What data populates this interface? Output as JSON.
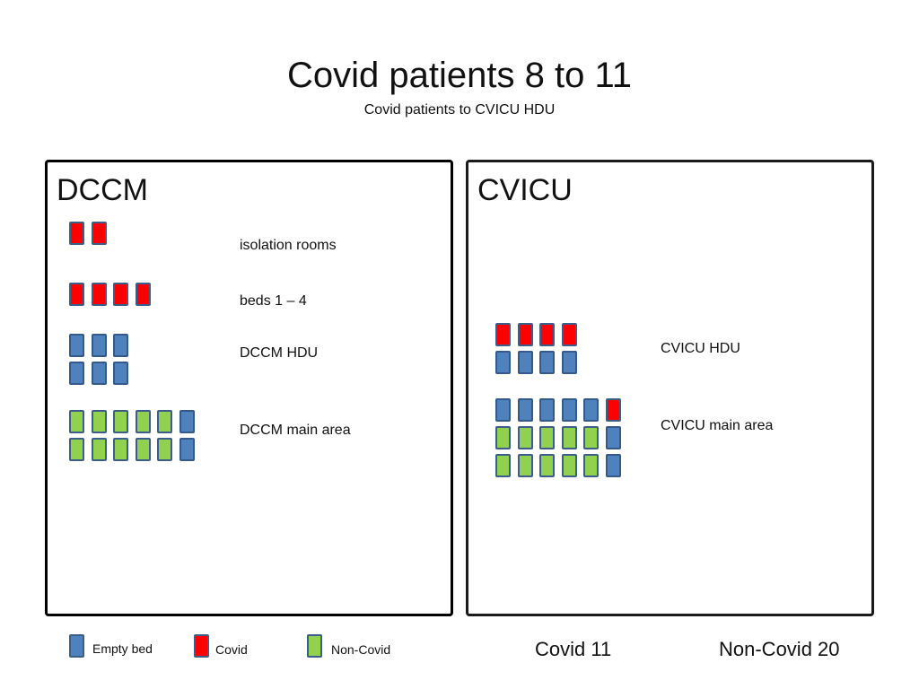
{
  "title": "Covid patients 8 to 11",
  "subtitle": "Covid patients to CVICU HDU",
  "colors": {
    "empty": "#4f81bd",
    "covid": "#ff0000",
    "noncovid": "#92d050"
  },
  "dccm": {
    "title": "DCCM",
    "areas": [
      {
        "label": "isolation rooms",
        "rows": [
          [
            "covid",
            "covid"
          ]
        ]
      },
      {
        "label": "beds 1 – 4",
        "rows": [
          [
            "covid",
            "covid",
            "covid",
            "covid"
          ]
        ]
      },
      {
        "label": "DCCM HDU",
        "rows": [
          [
            "empty",
            "empty",
            "empty"
          ],
          [
            "empty",
            "empty",
            "empty"
          ]
        ]
      },
      {
        "label": "DCCM main area",
        "rows": [
          [
            "noncovid",
            "noncovid",
            "noncovid",
            "noncovid",
            "noncovid",
            "empty"
          ],
          [
            "noncovid",
            "noncovid",
            "noncovid",
            "noncovid",
            "noncovid",
            "empty"
          ]
        ]
      }
    ]
  },
  "cvicu": {
    "title": "CVICU",
    "areas": [
      {
        "label": "CVICU HDU",
        "rows": [
          [
            "covid",
            "covid",
            "covid",
            "covid"
          ],
          [
            "empty",
            "empty",
            "empty",
            "empty"
          ]
        ]
      },
      {
        "label": "CVICU main area",
        "rows": [
          [
            "empty",
            "empty",
            "empty",
            "empty",
            "empty",
            "covid"
          ],
          [
            "noncovid",
            "noncovid",
            "noncovid",
            "noncovid",
            "noncovid",
            "empty"
          ],
          [
            "noncovid",
            "noncovid",
            "noncovid",
            "noncovid",
            "noncovid",
            "empty"
          ]
        ]
      }
    ]
  },
  "legend": [
    {
      "label": "Empty bed",
      "kind": "empty"
    },
    {
      "label": "Covid",
      "kind": "covid"
    },
    {
      "label": "Non-Covid",
      "kind": "noncovid"
    }
  ],
  "totals": {
    "covid": "Covid 11",
    "noncovid": "Non-Covid 20"
  }
}
